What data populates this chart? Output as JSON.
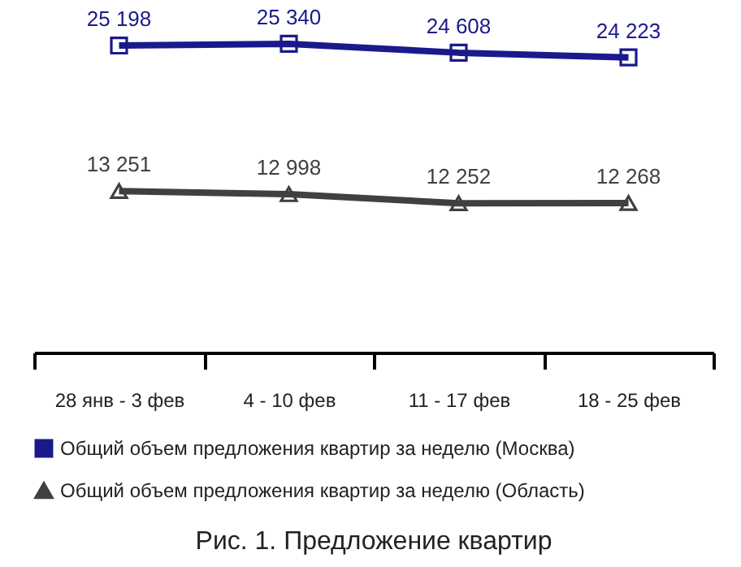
{
  "chart_data": {
    "type": "line",
    "title": "Рис. 1. Предложение квартир",
    "categories": [
      "28 янв - 3 фев",
      "4 - 10 фев",
      "11 - 17 фев",
      "18 - 25 фев"
    ],
    "series": [
      {
        "name": "Общий объем предложения квартир за неделю (Москва)",
        "color": "#1a1a8c",
        "marker": "square",
        "values": [
          25198,
          25340,
          24608,
          24223
        ],
        "value_labels": [
          "25 198",
          "25 340",
          "24 608",
          "24 223"
        ]
      },
      {
        "name": "Общий объем предложения квартир за неделю (Область)",
        "color": "#404040",
        "marker": "triangle",
        "values": [
          13251,
          12998,
          12252,
          12268
        ],
        "value_labels": [
          "13 251",
          "12 998",
          "12 252",
          "12 268"
        ]
      }
    ],
    "legend": "bottom",
    "grid": false,
    "line_style": "solid"
  }
}
